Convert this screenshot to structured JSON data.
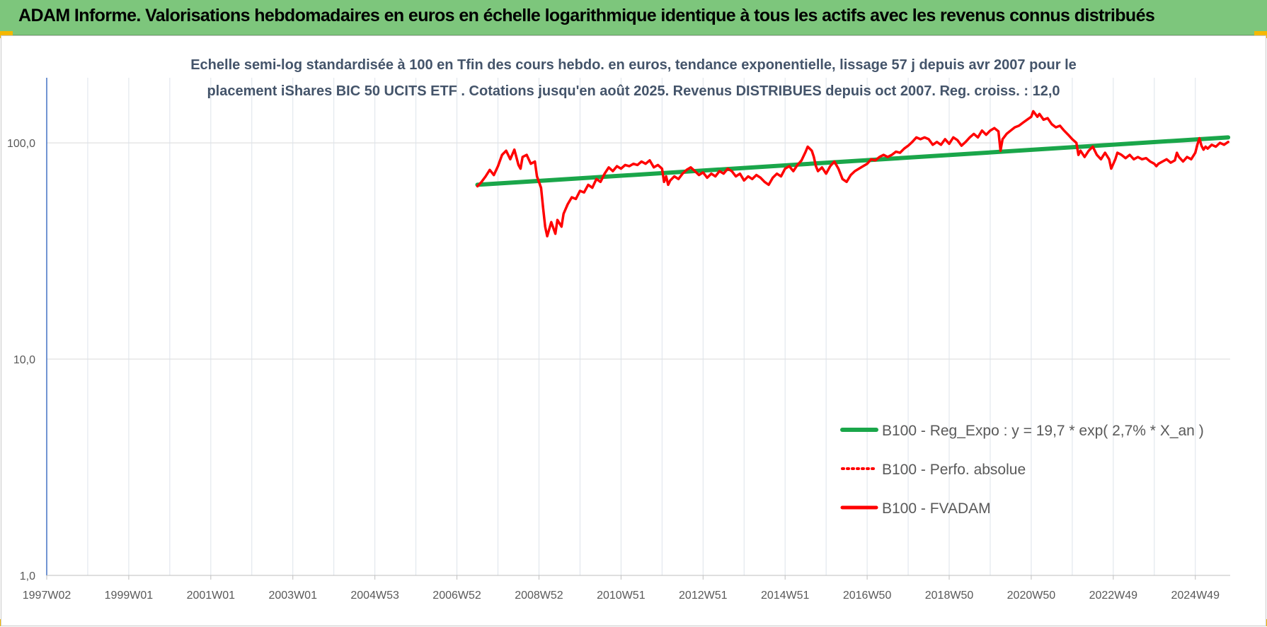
{
  "banner": {
    "title": "ADAM Informe. Valorisations hebdomadaires en euros en échelle logarithmique identique à tous les actifs avec les revenus connus distribués"
  },
  "colors": {
    "banner_bg": "#7dc67c",
    "accent_corner": "#f5b800",
    "trend_line": "#1aa64a",
    "price_line": "#ff0000"
  },
  "chart_data": {
    "type": "line",
    "title_lines": [
      "Echelle semi-log standardisée à 100 en Tfin des cours hebdo. en euros, tendance exponentielle, lissage 57 j depuis avr 2007 pour le",
      "placement iShares BIC 50 UCITS ETF . Cotations jusqu'en août 2025. Revenus DISTRIBUES depuis oct 2007. Reg. croiss. : 12,0"
    ],
    "y_scale": "log",
    "ylim": [
      1,
      200
    ],
    "y_ticks": [
      {
        "value": 1,
        "label": "1,0"
      },
      {
        "value": 10,
        "label": "10,0"
      },
      {
        "value": 100,
        "label": "100,0"
      }
    ],
    "xlim": [
      1997.0,
      2025.85
    ],
    "x_ticks": [
      {
        "value": 1997.0,
        "label": "1997W02"
      },
      {
        "value": 1999.0,
        "label": "1999W01"
      },
      {
        "value": 2001.0,
        "label": "2001W01"
      },
      {
        "value": 2003.0,
        "label": "2003W01"
      },
      {
        "value": 2005.0,
        "label": "2004W53"
      },
      {
        "value": 2007.0,
        "label": "2006W52"
      },
      {
        "value": 2009.0,
        "label": "2008W52"
      },
      {
        "value": 2011.0,
        "label": "2010W51"
      },
      {
        "value": 2013.0,
        "label": "2012W51"
      },
      {
        "value": 2015.0,
        "label": "2014W51"
      },
      {
        "value": 2017.0,
        "label": "2016W50"
      },
      {
        "value": 2019.0,
        "label": "2018W50"
      },
      {
        "value": 2021.0,
        "label": "2020W50"
      },
      {
        "value": 2023.0,
        "label": "2022W49"
      },
      {
        "value": 2025.0,
        "label": "2024W49"
      }
    ],
    "grid": true,
    "legend_position": "bottom-right",
    "series": [
      {
        "name": "B100 - Reg_Expo : y = 19,7 * exp( 2,7% *  X_an )",
        "style": "solid-thick",
        "color": "#1aa64a",
        "points": [
          [
            2007.5,
            64
          ],
          [
            2025.8,
            106
          ]
        ]
      },
      {
        "name": "B100 - Perfo. absolue",
        "style": "dotted",
        "color": "#ff0000",
        "points": []
      },
      {
        "name": "B100 - FVADAM",
        "style": "solid",
        "color": "#ff0000",
        "points": [
          [
            2007.5,
            63
          ],
          [
            2007.6,
            66
          ],
          [
            2007.7,
            70
          ],
          [
            2007.8,
            75
          ],
          [
            2007.9,
            71
          ],
          [
            2008.0,
            78
          ],
          [
            2008.1,
            88
          ],
          [
            2008.2,
            92
          ],
          [
            2008.3,
            84
          ],
          [
            2008.4,
            93
          ],
          [
            2008.5,
            79
          ],
          [
            2008.55,
            76
          ],
          [
            2008.6,
            86
          ],
          [
            2008.7,
            88
          ],
          [
            2008.8,
            80
          ],
          [
            2008.9,
            82
          ],
          [
            2008.95,
            70
          ],
          [
            2009.05,
            62
          ],
          [
            2009.1,
            50
          ],
          [
            2009.15,
            41
          ],
          [
            2009.2,
            37
          ],
          [
            2009.3,
            43
          ],
          [
            2009.4,
            38
          ],
          [
            2009.45,
            44
          ],
          [
            2009.55,
            41
          ],
          [
            2009.6,
            47
          ],
          [
            2009.7,
            52
          ],
          [
            2009.8,
            56
          ],
          [
            2009.9,
            55
          ],
          [
            2010.0,
            60
          ],
          [
            2010.1,
            59
          ],
          [
            2010.2,
            64
          ],
          [
            2010.3,
            62
          ],
          [
            2010.4,
            68
          ],
          [
            2010.5,
            66
          ],
          [
            2010.6,
            72
          ],
          [
            2010.7,
            77
          ],
          [
            2010.8,
            74
          ],
          [
            2010.9,
            78
          ],
          [
            2011.0,
            76
          ],
          [
            2011.1,
            79
          ],
          [
            2011.2,
            78
          ],
          [
            2011.3,
            80
          ],
          [
            2011.4,
            79
          ],
          [
            2011.5,
            82
          ],
          [
            2011.6,
            80
          ],
          [
            2011.7,
            83
          ],
          [
            2011.8,
            77
          ],
          [
            2011.9,
            79
          ],
          [
            2012.0,
            76
          ],
          [
            2012.05,
            66
          ],
          [
            2012.1,
            70
          ],
          [
            2012.15,
            64
          ],
          [
            2012.2,
            67
          ],
          [
            2012.3,
            70
          ],
          [
            2012.4,
            68
          ],
          [
            2012.5,
            72
          ],
          [
            2012.6,
            75
          ],
          [
            2012.7,
            77
          ],
          [
            2012.8,
            74
          ],
          [
            2012.9,
            71
          ],
          [
            2013.0,
            73
          ],
          [
            2013.1,
            69
          ],
          [
            2013.2,
            72
          ],
          [
            2013.3,
            70
          ],
          [
            2013.4,
            74
          ],
          [
            2013.5,
            72
          ],
          [
            2013.6,
            76
          ],
          [
            2013.7,
            74
          ],
          [
            2013.8,
            70
          ],
          [
            2013.9,
            72
          ],
          [
            2014.0,
            67
          ],
          [
            2014.1,
            70
          ],
          [
            2014.2,
            68
          ],
          [
            2014.3,
            71
          ],
          [
            2014.4,
            69
          ],
          [
            2014.5,
            66
          ],
          [
            2014.6,
            64
          ],
          [
            2014.7,
            69
          ],
          [
            2014.8,
            72
          ],
          [
            2014.9,
            70
          ],
          [
            2015.0,
            76
          ],
          [
            2015.1,
            78
          ],
          [
            2015.2,
            74
          ],
          [
            2015.3,
            79
          ],
          [
            2015.4,
            83
          ],
          [
            2015.5,
            91
          ],
          [
            2015.55,
            96
          ],
          [
            2015.65,
            92
          ],
          [
            2015.7,
            86
          ],
          [
            2015.75,
            78
          ],
          [
            2015.8,
            74
          ],
          [
            2015.9,
            77
          ],
          [
            2016.0,
            72
          ],
          [
            2016.1,
            78
          ],
          [
            2016.2,
            82
          ],
          [
            2016.3,
            76
          ],
          [
            2016.4,
            68
          ],
          [
            2016.5,
            66
          ],
          [
            2016.6,
            71
          ],
          [
            2016.7,
            74
          ],
          [
            2016.8,
            76
          ],
          [
            2016.9,
            78
          ],
          [
            2017.0,
            80
          ],
          [
            2017.1,
            84
          ],
          [
            2017.2,
            83
          ],
          [
            2017.3,
            86
          ],
          [
            2017.4,
            88
          ],
          [
            2017.5,
            86
          ],
          [
            2017.6,
            88
          ],
          [
            2017.7,
            91
          ],
          [
            2017.8,
            90
          ],
          [
            2017.9,
            94
          ],
          [
            2018.0,
            97
          ],
          [
            2018.1,
            101
          ],
          [
            2018.2,
            106
          ],
          [
            2018.3,
            104
          ],
          [
            2018.4,
            106
          ],
          [
            2018.5,
            104
          ],
          [
            2018.6,
            98
          ],
          [
            2018.7,
            101
          ],
          [
            2018.8,
            98
          ],
          [
            2018.9,
            104
          ],
          [
            2019.0,
            99
          ],
          [
            2019.1,
            106
          ],
          [
            2019.2,
            103
          ],
          [
            2019.3,
            97
          ],
          [
            2019.4,
            101
          ],
          [
            2019.5,
            106
          ],
          [
            2019.6,
            110
          ],
          [
            2019.7,
            106
          ],
          [
            2019.8,
            114
          ],
          [
            2019.9,
            109
          ],
          [
            2020.0,
            114
          ],
          [
            2020.1,
            117
          ],
          [
            2020.2,
            113
          ],
          [
            2020.25,
            92
          ],
          [
            2020.3,
            104
          ],
          [
            2020.4,
            110
          ],
          [
            2020.5,
            114
          ],
          [
            2020.6,
            118
          ],
          [
            2020.7,
            120
          ],
          [
            2020.8,
            124
          ],
          [
            2020.9,
            128
          ],
          [
            2021.0,
            132
          ],
          [
            2021.05,
            140
          ],
          [
            2021.15,
            132
          ],
          [
            2021.2,
            136
          ],
          [
            2021.3,
            128
          ],
          [
            2021.4,
            130
          ],
          [
            2021.5,
            122
          ],
          [
            2021.6,
            118
          ],
          [
            2021.7,
            120
          ],
          [
            2021.8,
            114
          ],
          [
            2021.9,
            109
          ],
          [
            2022.0,
            104
          ],
          [
            2022.1,
            100
          ],
          [
            2022.15,
            88
          ],
          [
            2022.2,
            92
          ],
          [
            2022.3,
            86
          ],
          [
            2022.4,
            92
          ],
          [
            2022.5,
            96
          ],
          [
            2022.6,
            88
          ],
          [
            2022.7,
            84
          ],
          [
            2022.8,
            90
          ],
          [
            2022.9,
            84
          ],
          [
            2022.95,
            76
          ],
          [
            2023.05,
            84
          ],
          [
            2023.1,
            90
          ],
          [
            2023.2,
            88
          ],
          [
            2023.3,
            85
          ],
          [
            2023.4,
            88
          ],
          [
            2023.5,
            84
          ],
          [
            2023.6,
            86
          ],
          [
            2023.7,
            84
          ],
          [
            2023.8,
            85
          ],
          [
            2023.9,
            82
          ],
          [
            2024.0,
            80
          ],
          [
            2024.05,
            78
          ],
          [
            2024.1,
            80
          ],
          [
            2024.2,
            82
          ],
          [
            2024.3,
            84
          ],
          [
            2024.4,
            81
          ],
          [
            2024.5,
            83
          ],
          [
            2024.55,
            90
          ],
          [
            2024.6,
            86
          ],
          [
            2024.7,
            82
          ],
          [
            2024.8,
            86
          ],
          [
            2024.9,
            84
          ],
          [
            2025.0,
            90
          ],
          [
            2025.05,
            98
          ],
          [
            2025.1,
            105
          ],
          [
            2025.15,
            97
          ],
          [
            2025.2,
            93
          ],
          [
            2025.25,
            96
          ],
          [
            2025.3,
            94
          ],
          [
            2025.4,
            98
          ],
          [
            2025.5,
            96
          ],
          [
            2025.6,
            100
          ],
          [
            2025.7,
            98
          ],
          [
            2025.8,
            101
          ]
        ]
      }
    ]
  }
}
